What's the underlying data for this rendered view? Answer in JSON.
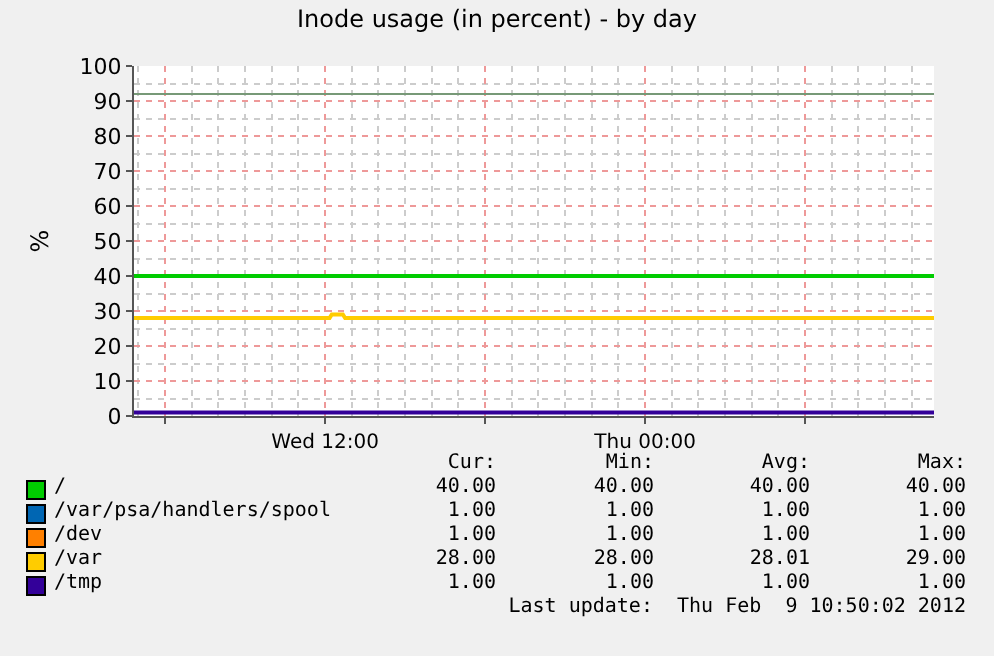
{
  "chart_data": {
    "type": "line",
    "title": "Inode usage (in percent) - by day",
    "ylabel": "%",
    "xlim": [
      "2012-02-08T04:50",
      "2012-02-09T10:50"
    ],
    "xticks": [
      {
        "value": "2012-02-08T06:00",
        "label": null
      },
      {
        "value": "2012-02-08T12:00",
        "label": "Wed 12:00"
      },
      {
        "value": "2012-02-08T18:00",
        "label": null
      },
      {
        "value": "2012-02-09T00:00",
        "label": "Thu 00:00"
      },
      {
        "value": "2012-02-09T06:00",
        "label": null
      }
    ],
    "ylim": [
      0,
      100
    ],
    "yticks": [
      0,
      10,
      20,
      30,
      40,
      50,
      60,
      70,
      80,
      90,
      100
    ],
    "grid": true,
    "legend": "bottom",
    "marker": "none",
    "line_style": "solid",
    "ref_lines": [
      {
        "axis": "y",
        "value": 92,
        "label": null,
        "color": "#779977"
      }
    ],
    "series": [
      {
        "name": "/",
        "color": "#00cc00",
        "x": [
          "2012-02-08T04:50",
          "2012-02-09T10:50"
        ],
        "values": [
          40,
          40
        ]
      },
      {
        "name": "/var/psa/handlers/spool",
        "color": "#0066b3"
      },
      {
        "name": "/dev",
        "color": "#ff8000"
      },
      {
        "name": "/var",
        "color": "#ffcc00",
        "x": [
          "2012-02-08T04:50",
          "2012-02-08T12:10",
          "2012-02-08T12:15",
          "2012-02-08T12:40",
          "2012-02-08T12:45",
          "2012-02-09T10:50"
        ],
        "values": [
          28,
          28,
          29,
          29,
          28,
          28
        ]
      },
      {
        "name": "/tmp",
        "color": "#330099",
        "x": [
          "2012-02-08T04:50",
          "2012-02-09T10:50"
        ],
        "values": [
          1,
          1
        ]
      }
    ],
    "annotations": [
      "Cur:",
      "Min:",
      "Avg:",
      "Max:",
      "40.00",
      "40.00",
      "40.00",
      "40.00",
      "1.00",
      "1.00",
      "1.00",
      "1.00",
      "1.00",
      "1.00",
      "1.00",
      "1.00",
      "28.00",
      "28.00",
      "28.01",
      "29.00",
      "1.00",
      "1.00",
      "1.00",
      "1.00",
      "Last update:  Thu Feb  9 10:50:02 2012"
    ]
  }
}
